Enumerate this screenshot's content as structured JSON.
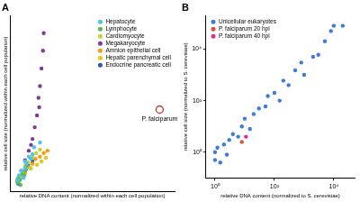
{
  "chart_data": [
    {
      "type": "scatter",
      "title": "A",
      "x_label": "relative DNA content (normalized within each cell population)",
      "y_label": "relative cell size (normalized within each cell population)",
      "xlim": [
        0,
        22
      ],
      "ylim": [
        0,
        15
      ],
      "tick_labels": false,
      "grid": false,
      "legend": "upper right",
      "series": [
        {
          "name": "Hepatocyte",
          "color": "#4fc3e8",
          "x": [
            1,
            1.2,
            1.5,
            2,
            2,
            2.5,
            3,
            3.2,
            4,
            1.8,
            2.2,
            2.8
          ],
          "y": [
            1,
            1.4,
            1.8,
            2,
            2.6,
            3,
            3.2,
            3.8,
            4.2,
            1.2,
            2.4,
            2.8
          ]
        },
        {
          "name": "Lymphocyte",
          "color": "#5cb85c",
          "x": [
            1,
            1.1,
            1.3,
            1.6,
            2,
            2.2,
            1.4,
            1.9
          ],
          "y": [
            0.8,
            1.2,
            1,
            1.5,
            1.8,
            2.2,
            0.6,
            1.4
          ]
        },
        {
          "name": "Cardiomyocyte",
          "color": "#c5d13a",
          "x": [
            1,
            1.5,
            2,
            2.4,
            3,
            3.5,
            4,
            2.7,
            1.7
          ],
          "y": [
            1,
            1.3,
            2.2,
            2.5,
            3,
            3.3,
            3.6,
            2,
            1.6
          ]
        },
        {
          "name": "Megakaryocyte",
          "color": "#7d3c98",
          "x": [
            1,
            1.5,
            2,
            2.5,
            3,
            3.3,
            3.6,
            3.8,
            4,
            4.2,
            4.4,
            4.5,
            2.8,
            3.9
          ],
          "y": [
            1,
            1.8,
            2.7,
            3.5,
            4.5,
            5.5,
            6.5,
            8,
            9,
            10.5,
            12,
            13.5,
            4,
            7.2
          ]
        },
        {
          "name": "Amnion epithelial cell",
          "color": "#f39c12",
          "x": [
            1,
            1.4,
            2,
            2.6,
            3,
            3.4,
            4,
            4.5,
            5
          ],
          "y": [
            1,
            1.2,
            1.6,
            2.1,
            2.4,
            2.8,
            3,
            3.3,
            3.5
          ]
        },
        {
          "name": "Hepatic parenchymal cell",
          "color": "#e6c619",
          "x": [
            1,
            1.6,
            2,
            2.8,
            3.6,
            4.2,
            4.8
          ],
          "y": [
            0.9,
            1.3,
            1.7,
            2,
            2.3,
            2.6,
            2.9
          ]
        },
        {
          "name": "Endocrine pancreatic cell",
          "color": "#2c5aa0",
          "x": [
            1,
            1.3,
            1.8,
            2.4,
            3,
            1.1,
            2.1
          ],
          "y": [
            1,
            1.1,
            1.5,
            2.3,
            2.6,
            0.7,
            1.9
          ]
        }
      ],
      "annotations": [
        {
          "text": "P. falciparum",
          "x": 20,
          "y": 7,
          "color": "#c0392b",
          "marker": "open circle"
        }
      ]
    },
    {
      "type": "scatter",
      "title": "B",
      "x_label": "relative DNA content (normalized to S. cerevisiae)",
      "y_label": "relative cell size (normalized to S. cerevisiae)",
      "log": true,
      "xlim": [
        0.5,
        50000
      ],
      "ylim": [
        0.1,
        200000
      ],
      "grid": false,
      "legend": "upper left",
      "xticks": [
        {
          "value": 1,
          "label": "10⁰"
        },
        {
          "value": 100,
          "label": "10²"
        },
        {
          "value": 10000,
          "label": "10⁴"
        }
      ],
      "yticks": [
        {
          "value": 1,
          "label": "10⁰"
        },
        {
          "value": 100,
          "label": "10²"
        },
        {
          "value": 10000,
          "label": "10⁴"
        }
      ],
      "series": [
        {
          "name": "Unicellular eukaryotes",
          "color": "#3b7dd8",
          "x": [
            1,
            1,
            1.2,
            1.5,
            2,
            2.5,
            3,
            4,
            6,
            8,
            10,
            15,
            20,
            30,
            50,
            60,
            100,
            150,
            200,
            300,
            500,
            800,
            1000,
            2000,
            3000,
            5000,
            8000,
            10000,
            20000
          ],
          "y": [
            1,
            0.5,
            1.5,
            0.4,
            2,
            0.8,
            3,
            5,
            4,
            10,
            20,
            8,
            30,
            50,
            60,
            150,
            200,
            100,
            600,
            400,
            1500,
            3000,
            1000,
            5000,
            6000,
            20000,
            50000,
            80000,
            80000
          ]
        },
        {
          "name": "P. falciparum 20 hpi",
          "color": "#e74c3c",
          "x": [
            8
          ],
          "y": [
            2.5
          ]
        },
        {
          "name": "P. falciparum 40 hpi",
          "color": "#d63384",
          "x": [
            11
          ],
          "y": [
            4
          ]
        }
      ]
    }
  ]
}
